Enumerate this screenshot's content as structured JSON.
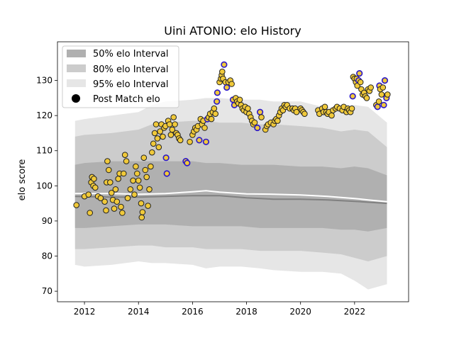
{
  "chart_data": {
    "type": "scatter",
    "title": "Uini ATONIO: elo History",
    "xlabel": "",
    "ylabel": "elo score",
    "xlim": [
      2011.0,
      2024.0
    ],
    "ylim": [
      67,
      141
    ],
    "x_ticks": [
      2012,
      2014,
      2016,
      2018,
      2020,
      2022
    ],
    "y_ticks": [
      70,
      80,
      90,
      100,
      110,
      120,
      130
    ],
    "legend": {
      "placement": "top-left",
      "entries": [
        "50% elo Interval",
        "80% elo Interval",
        "95% elo Interval",
        "Post Match elo"
      ]
    },
    "colors": {
      "band_50": "#b0b0b0",
      "band_80": "#cccccc",
      "band_95": "#e6e6e6",
      "median_line": "#ffffff",
      "center_line": "#808080",
      "point_fill": "#f0c93a",
      "point_edge_normal": "#222222",
      "point_edge_highlight": "#2b17c9"
    },
    "bands": {
      "x": [
        2011.65,
        2012.0,
        2013.0,
        2014.0,
        2014.5,
        2015.0,
        2016.0,
        2016.5,
        2017.0,
        2017.8,
        2018.5,
        2019.0,
        2020.0,
        2020.8,
        2021.5,
        2022.0,
        2022.5,
        2023.2
      ],
      "p95_low": [
        77.5,
        77.0,
        77.5,
        78.5,
        78.0,
        78.0,
        77.5,
        76.5,
        77.0,
        77.0,
        76.5,
        76.0,
        75.5,
        75.5,
        75.0,
        73.0,
        70.5,
        72.0
      ],
      "p95_high": [
        118.5,
        119.0,
        120.0,
        121.0,
        123.0,
        124.0,
        124.5,
        125.0,
        125.0,
        124.5,
        124.5,
        124.0,
        124.0,
        122.5,
        122.0,
        123.0,
        122.5,
        118.0
      ],
      "p80_low": [
        82.0,
        82.0,
        82.5,
        83.0,
        83.0,
        82.5,
        82.5,
        82.0,
        82.0,
        82.0,
        81.5,
        81.5,
        81.5,
        81.0,
        80.5,
        79.5,
        78.5,
        80.0
      ],
      "p80_high": [
        114.0,
        114.5,
        115.0,
        116.0,
        117.5,
        118.0,
        118.5,
        118.5,
        118.0,
        118.0,
        117.5,
        117.5,
        117.0,
        116.5,
        115.5,
        116.0,
        115.5,
        111.0
      ],
      "p50_low": [
        88.0,
        88.0,
        88.5,
        89.0,
        89.0,
        89.0,
        88.5,
        88.5,
        88.5,
        88.5,
        88.0,
        88.0,
        88.0,
        88.0,
        87.5,
        87.5,
        87.0,
        88.0
      ],
      "p50_high": [
        106.0,
        106.5,
        107.0,
        107.0,
        107.0,
        107.0,
        107.0,
        106.5,
        106.5,
        106.0,
        106.0,
        106.0,
        105.5,
        105.5,
        105.0,
        105.5,
        105.0,
        103.0
      ]
    },
    "median_line": {
      "x": [
        2011.65,
        2013.0,
        2014.0,
        2015.0,
        2016.0,
        2016.5,
        2017.0,
        2018.0,
        2019.0,
        2020.0,
        2021.0,
        2022.0,
        2022.5,
        2023.2
      ],
      "y": [
        97.8,
        97.8,
        97.6,
        97.8,
        98.3,
        98.6,
        98.2,
        97.7,
        97.6,
        97.4,
        97.0,
        96.4,
        96.0,
        95.5
      ]
    },
    "center_line": {
      "x": [
        2011.65,
        2013.0,
        2014.0,
        2015.0,
        2016.0,
        2017.0,
        2018.0,
        2019.0,
        2020.0,
        2021.0,
        2022.0,
        2023.2
      ],
      "y": [
        97.0,
        96.8,
        96.8,
        97.0,
        97.2,
        97.2,
        96.6,
        96.2,
        96.2,
        96.0,
        95.6,
        95.0
      ]
    },
    "series": [
      {
        "name": "Post Match elo",
        "points": [
          [
            2011.7,
            94.5,
            0
          ],
          [
            2012.0,
            97.0,
            0
          ],
          [
            2012.15,
            97.5,
            0
          ],
          [
            2012.2,
            92.3,
            0
          ],
          [
            2012.25,
            101.0,
            0
          ],
          [
            2012.28,
            102.5,
            0
          ],
          [
            2012.33,
            100.0,
            0
          ],
          [
            2012.35,
            102.0,
            0
          ],
          [
            2012.4,
            99.5,
            0
          ],
          [
            2012.5,
            97.0,
            0
          ],
          [
            2012.6,
            96.5,
            0
          ],
          [
            2012.75,
            95.5,
            0
          ],
          [
            2012.8,
            93.0,
            0
          ],
          [
            2012.82,
            101.0,
            0
          ],
          [
            2012.85,
            107.0,
            0
          ],
          [
            2012.9,
            104.5,
            0
          ],
          [
            2012.95,
            101.0,
            0
          ],
          [
            2013.0,
            98.0,
            0
          ],
          [
            2013.05,
            96.0,
            0
          ],
          [
            2013.1,
            93.5,
            0
          ],
          [
            2013.15,
            99.0,
            0
          ],
          [
            2013.2,
            95.5,
            0
          ],
          [
            2013.25,
            102.0,
            0
          ],
          [
            2013.3,
            103.5,
            0
          ],
          [
            2013.35,
            94.0,
            0
          ],
          [
            2013.4,
            92.3,
            0
          ],
          [
            2013.45,
            103.5,
            0
          ],
          [
            2013.5,
            108.8,
            0
          ],
          [
            2013.55,
            107.0,
            0
          ],
          [
            2013.6,
            96.5,
            0
          ],
          [
            2013.7,
            99.0,
            0
          ],
          [
            2013.8,
            101.5,
            0
          ],
          [
            2013.85,
            97.5,
            0
          ],
          [
            2013.9,
            105.5,
            0
          ],
          [
            2013.95,
            103.5,
            0
          ],
          [
            2014.0,
            101.5,
            0
          ],
          [
            2014.05,
            99.5,
            0
          ],
          [
            2014.1,
            95.0,
            0
          ],
          [
            2014.12,
            91.0,
            0
          ],
          [
            2014.15,
            92.5,
            0
          ],
          [
            2014.2,
            108.0,
            0
          ],
          [
            2014.25,
            104.5,
            0
          ],
          [
            2014.3,
            102.5,
            0
          ],
          [
            2014.35,
            94.3,
            0
          ],
          [
            2014.4,
            99.0,
            0
          ],
          [
            2014.45,
            105.5,
            0
          ],
          [
            2014.5,
            109.5,
            0
          ],
          [
            2014.55,
            112.0,
            0
          ],
          [
            2014.6,
            115.0,
            0
          ],
          [
            2014.65,
            117.5,
            0
          ],
          [
            2014.7,
            113.5,
            0
          ],
          [
            2014.75,
            111.0,
            0
          ],
          [
            2014.8,
            115.5,
            0
          ],
          [
            2014.85,
            117.5,
            0
          ],
          [
            2014.9,
            114.0,
            0
          ],
          [
            2014.95,
            116.5,
            0
          ],
          [
            2015.0,
            117.0,
            0
          ],
          [
            2015.02,
            108.0,
            1
          ],
          [
            2015.05,
            103.5,
            1
          ],
          [
            2015.1,
            118.5,
            0
          ],
          [
            2015.15,
            117.5,
            0
          ],
          [
            2015.2,
            114.5,
            0
          ],
          [
            2015.25,
            116.0,
            0
          ],
          [
            2015.3,
            119.5,
            0
          ],
          [
            2015.35,
            117.5,
            0
          ],
          [
            2015.4,
            115.0,
            0
          ],
          [
            2015.45,
            114.5,
            0
          ],
          [
            2015.5,
            113.5,
            0
          ],
          [
            2015.55,
            113.0,
            0
          ],
          [
            2015.75,
            107.0,
            1
          ],
          [
            2015.8,
            106.5,
            1
          ],
          [
            2015.9,
            112.5,
            0
          ],
          [
            2016.0,
            114.5,
            0
          ],
          [
            2016.05,
            115.5,
            0
          ],
          [
            2016.1,
            116.5,
            0
          ],
          [
            2016.15,
            116.0,
            0
          ],
          [
            2016.2,
            117.0,
            0
          ],
          [
            2016.25,
            113.0,
            1
          ],
          [
            2016.3,
            119.0,
            0
          ],
          [
            2016.35,
            117.5,
            0
          ],
          [
            2016.4,
            118.5,
            0
          ],
          [
            2016.45,
            116.5,
            0
          ],
          [
            2016.5,
            112.5,
            1
          ],
          [
            2016.55,
            119.0,
            1
          ],
          [
            2016.6,
            119.5,
            0
          ],
          [
            2016.65,
            120.5,
            0
          ],
          [
            2016.7,
            119.0,
            0
          ],
          [
            2016.75,
            121.0,
            0
          ],
          [
            2016.8,
            122.0,
            0
          ],
          [
            2016.85,
            120.5,
            0
          ],
          [
            2016.9,
            124.0,
            1
          ],
          [
            2016.92,
            126.5,
            1
          ],
          [
            2017.0,
            129.5,
            0
          ],
          [
            2017.05,
            130.5,
            0
          ],
          [
            2017.08,
            131.5,
            0
          ],
          [
            2017.1,
            132.5,
            0
          ],
          [
            2017.13,
            130.5,
            0
          ],
          [
            2017.17,
            134.5,
            1
          ],
          [
            2017.22,
            129.5,
            0
          ],
          [
            2017.27,
            128.0,
            1
          ],
          [
            2017.33,
            129.5,
            0
          ],
          [
            2017.4,
            130.0,
            0
          ],
          [
            2017.45,
            129.0,
            0
          ],
          [
            2017.5,
            124.5,
            1
          ],
          [
            2017.55,
            123.0,
            1
          ],
          [
            2017.6,
            125.0,
            0
          ],
          [
            2017.65,
            124.0,
            0
          ],
          [
            2017.7,
            123.5,
            0
          ],
          [
            2017.75,
            124.5,
            0
          ],
          [
            2017.8,
            123.0,
            0
          ],
          [
            2017.85,
            122.0,
            0
          ],
          [
            2017.9,
            121.5,
            0
          ],
          [
            2017.95,
            122.5,
            0
          ],
          [
            2018.0,
            121.0,
            0
          ],
          [
            2018.05,
            122.0,
            0
          ],
          [
            2018.1,
            120.5,
            0
          ],
          [
            2018.15,
            119.5,
            0
          ],
          [
            2018.2,
            118.5,
            0
          ],
          [
            2018.25,
            117.5,
            0
          ],
          [
            2018.3,
            118.0,
            0
          ],
          [
            2018.4,
            116.5,
            1
          ],
          [
            2018.5,
            121.0,
            1
          ],
          [
            2018.55,
            119.5,
            0
          ],
          [
            2018.7,
            116.0,
            0
          ],
          [
            2018.75,
            117.0,
            0
          ],
          [
            2018.8,
            117.5,
            0
          ],
          [
            2018.9,
            118.0,
            0
          ],
          [
            2019.0,
            117.5,
            0
          ],
          [
            2019.05,
            118.5,
            0
          ],
          [
            2019.1,
            119.0,
            0
          ],
          [
            2019.15,
            118.5,
            0
          ],
          [
            2019.2,
            120.0,
            0
          ],
          [
            2019.25,
            121.0,
            0
          ],
          [
            2019.3,
            122.0,
            0
          ],
          [
            2019.35,
            121.5,
            0
          ],
          [
            2019.4,
            123.0,
            0
          ],
          [
            2019.45,
            122.5,
            0
          ],
          [
            2019.5,
            123.0,
            0
          ],
          [
            2019.6,
            122.0,
            0
          ],
          [
            2019.7,
            122.0,
            0
          ],
          [
            2019.75,
            121.5,
            0
          ],
          [
            2019.8,
            122.0,
            0
          ],
          [
            2019.85,
            121.0,
            0
          ],
          [
            2020.0,
            122.0,
            0
          ],
          [
            2020.05,
            121.5,
            0
          ],
          [
            2020.1,
            121.0,
            0
          ],
          [
            2020.15,
            120.5,
            0
          ],
          [
            2020.65,
            121.5,
            0
          ],
          [
            2020.7,
            120.5,
            0
          ],
          [
            2020.8,
            122.0,
            0
          ],
          [
            2020.85,
            121.0,
            0
          ],
          [
            2020.9,
            122.5,
            0
          ],
          [
            2020.95,
            121.0,
            0
          ],
          [
            2021.0,
            120.5,
            0
          ],
          [
            2021.05,
            121.0,
            0
          ],
          [
            2021.15,
            120.0,
            0
          ],
          [
            2021.2,
            121.5,
            0
          ],
          [
            2021.3,
            122.0,
            0
          ],
          [
            2021.35,
            122.5,
            0
          ],
          [
            2021.45,
            122.0,
            0
          ],
          [
            2021.55,
            121.5,
            0
          ],
          [
            2021.6,
            122.5,
            0
          ],
          [
            2021.7,
            121.0,
            0
          ],
          [
            2021.75,
            122.0,
            0
          ],
          [
            2021.8,
            121.5,
            0
          ],
          [
            2021.85,
            121.0,
            0
          ],
          [
            2021.9,
            122.0,
            0
          ],
          [
            2021.93,
            125.5,
            1
          ],
          [
            2021.95,
            131.0,
            0
          ],
          [
            2022.0,
            130.5,
            0
          ],
          [
            2022.05,
            129.5,
            0
          ],
          [
            2022.08,
            130.5,
            0
          ],
          [
            2022.1,
            128.5,
            0
          ],
          [
            2022.15,
            130.0,
            1
          ],
          [
            2022.18,
            132.0,
            1
          ],
          [
            2022.22,
            129.5,
            0
          ],
          [
            2022.25,
            127.5,
            0
          ],
          [
            2022.3,
            126.0,
            0
          ],
          [
            2022.35,
            126.5,
            0
          ],
          [
            2022.4,
            125.5,
            0
          ],
          [
            2022.45,
            125.0,
            0
          ],
          [
            2022.5,
            127.5,
            0
          ],
          [
            2022.55,
            127.0,
            0
          ],
          [
            2022.6,
            128.0,
            0
          ],
          [
            2022.8,
            123.0,
            0
          ],
          [
            2022.85,
            122.5,
            1
          ],
          [
            2022.9,
            124.0,
            0
          ],
          [
            2022.92,
            128.5,
            1
          ],
          [
            2022.95,
            127.5,
            0
          ],
          [
            2023.0,
            126.0,
            0
          ],
          [
            2023.05,
            128.0,
            0
          ],
          [
            2023.08,
            123.0,
            1
          ],
          [
            2023.12,
            130.0,
            1
          ],
          [
            2023.18,
            125.0,
            1
          ],
          [
            2023.22,
            126.0,
            0
          ]
        ]
      }
    ]
  }
}
